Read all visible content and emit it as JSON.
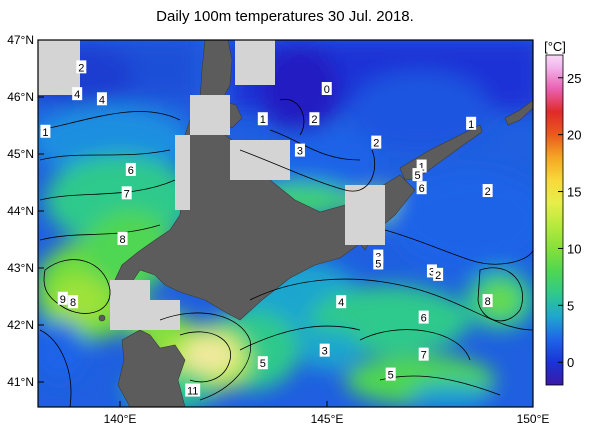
{
  "title": "Daily 100m temperatures 30 Jul. 2018.",
  "latitude_labels": [
    "47°N",
    "46°N",
    "45°N",
    "44°N",
    "43°N",
    "42°N",
    "41°N"
  ],
  "longitude_labels": [
    "140°E",
    "145°E",
    "150°E"
  ],
  "colorbar": {
    "unit": "[°C]",
    "ticks": [
      "25",
      "20",
      "15",
      "10",
      "5",
      "0"
    ],
    "range": [
      -2,
      27
    ],
    "stops": [
      {
        "v": -2,
        "c": "#3a1aa8"
      },
      {
        "v": 0,
        "c": "#1a33d6"
      },
      {
        "v": 2,
        "c": "#1f64e8"
      },
      {
        "v": 4,
        "c": "#1fa6cf"
      },
      {
        "v": 6,
        "c": "#2fc98c"
      },
      {
        "v": 8,
        "c": "#4fd652"
      },
      {
        "v": 10,
        "c": "#86e03a"
      },
      {
        "v": 12,
        "c": "#b6ea3c"
      },
      {
        "v": 14,
        "c": "#e6ee4a"
      },
      {
        "v": 16,
        "c": "#f7d93a"
      },
      {
        "v": 18,
        "c": "#f5a623"
      },
      {
        "v": 20,
        "c": "#ea5a1e"
      },
      {
        "v": 22,
        "c": "#e02a2a"
      },
      {
        "v": 24,
        "c": "#ea5fb0"
      },
      {
        "v": 26,
        "c": "#f2b9ee"
      },
      {
        "v": 27,
        "c": "#f7d6f5"
      }
    ]
  },
  "contour_labels": [
    {
      "text": "2",
      "lon": 139.05,
      "lat": 46.52
    },
    {
      "text": "4",
      "lon": 138.95,
      "lat": 46.05
    },
    {
      "text": "4",
      "lon": 139.55,
      "lat": 45.96
    },
    {
      "text": "1",
      "lon": 138.18,
      "lat": 45.39
    },
    {
      "text": "6",
      "lon": 140.25,
      "lat": 44.72
    },
    {
      "text": "7",
      "lon": 140.15,
      "lat": 44.31
    },
    {
      "text": "8",
      "lon": 140.05,
      "lat": 43.51
    },
    {
      "text": "9",
      "lon": 138.6,
      "lat": 42.46
    },
    {
      "text": "8",
      "lon": 138.85,
      "lat": 42.4
    },
    {
      "text": "0",
      "lon": 145.0,
      "lat": 46.14
    },
    {
      "text": "1",
      "lon": 143.45,
      "lat": 45.61
    },
    {
      "text": "2",
      "lon": 144.7,
      "lat": 45.61
    },
    {
      "text": "3",
      "lon": 144.35,
      "lat": 45.06
    },
    {
      "text": "2",
      "lon": 146.2,
      "lat": 45.2
    },
    {
      "text": "1",
      "lon": 147.3,
      "lat": 44.78
    },
    {
      "text": "5",
      "lon": 147.2,
      "lat": 44.63
    },
    {
      "text": "6",
      "lon": 147.3,
      "lat": 44.4
    },
    {
      "text": "1",
      "lon": 148.5,
      "lat": 45.53
    },
    {
      "text": "2",
      "lon": 148.9,
      "lat": 44.35
    },
    {
      "text": "3",
      "lon": 146.25,
      "lat": 43.2
    },
    {
      "text": "5",
      "lon": 146.25,
      "lat": 43.08
    },
    {
      "text": "3",
      "lon": 147.55,
      "lat": 42.94
    },
    {
      "text": "2",
      "lon": 147.7,
      "lat": 42.88
    },
    {
      "text": "8",
      "lon": 148.9,
      "lat": 42.42
    },
    {
      "text": "4",
      "lon": 145.35,
      "lat": 42.4
    },
    {
      "text": "6",
      "lon": 147.35,
      "lat": 42.13
    },
    {
      "text": "3",
      "lon": 144.95,
      "lat": 41.55
    },
    {
      "text": "5",
      "lon": 143.45,
      "lat": 41.33
    },
    {
      "text": "7",
      "lon": 147.35,
      "lat": 41.48
    },
    {
      "text": "5",
      "lon": 146.55,
      "lat": 41.13
    },
    {
      "text": "11",
      "lon": 141.75,
      "lat": 40.85
    }
  ]
}
